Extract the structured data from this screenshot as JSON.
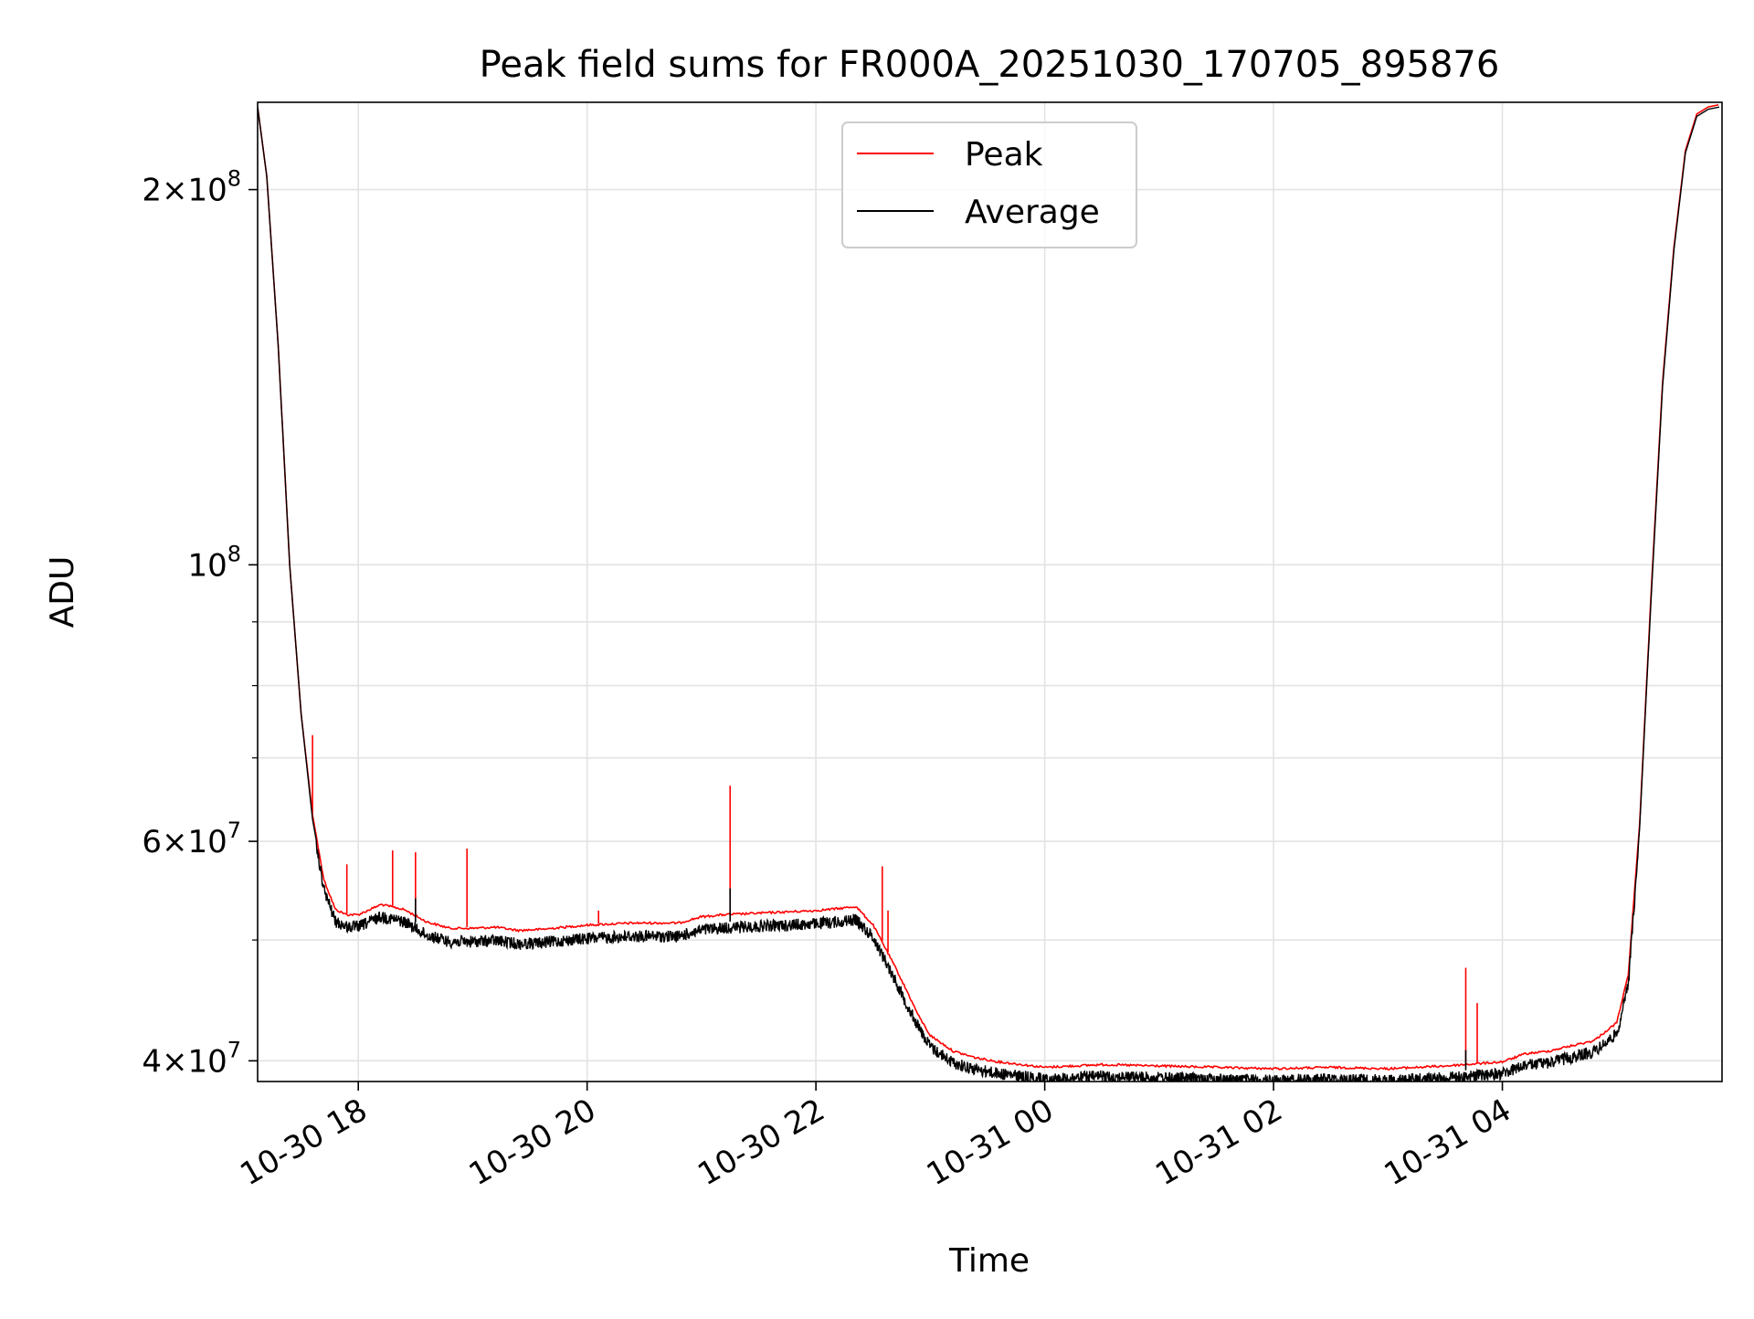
{
  "chart_data": {
    "type": "line",
    "title": "Peak field sums for FR000A_20251030_170705_895876",
    "xlabel": "Time",
    "ylabel": "ADU",
    "yscale": "log",
    "xlim_hours": [
      17.12,
      29.92
    ],
    "ylim": [
      38500000,
      235000000
    ],
    "grid": true,
    "legend_position": "upper center",
    "x_ticks": [
      {
        "hour": 18,
        "label": "10-30 18"
      },
      {
        "hour": 20,
        "label": "10-30 20"
      },
      {
        "hour": 22,
        "label": "10-30 22"
      },
      {
        "hour": 24,
        "label": "10-31 00"
      },
      {
        "hour": 26,
        "label": "10-31 02"
      },
      {
        "hour": 28,
        "label": "10-31 04"
      }
    ],
    "y_major_ticks": [
      {
        "value": 40000000,
        "mantissa": "4",
        "exponent": "7"
      },
      {
        "value": 60000000,
        "mantissa": "6",
        "exponent": "7"
      },
      {
        "value": 100000000,
        "mantissa": "",
        "exponent": "8"
      },
      {
        "value": 200000000,
        "mantissa": "2",
        "exponent": "8"
      }
    ],
    "y_minor_values": [
      50000000,
      70000000,
      80000000,
      90000000
    ],
    "series": [
      {
        "name": "Peak",
        "color": "#ff0000",
        "x_hours": [
          17.12,
          17.2,
          17.3,
          17.4,
          17.5,
          17.6,
          17.7,
          17.8,
          17.9,
          18.0,
          18.2,
          18.4,
          18.6,
          18.8,
          19.0,
          19.2,
          19.4,
          19.6,
          19.8,
          20.0,
          20.2,
          20.4,
          20.6,
          20.8,
          21.0,
          21.2,
          21.4,
          21.6,
          21.8,
          22.0,
          22.2,
          22.35,
          22.5,
          22.6,
          22.7,
          22.8,
          22.9,
          23.0,
          23.2,
          23.4,
          23.6,
          23.8,
          24.0,
          24.5,
          25.0,
          25.5,
          26.0,
          26.5,
          27.0,
          27.5,
          28.0,
          28.2,
          28.4,
          28.6,
          28.8,
          29.0,
          29.1,
          29.2,
          29.3,
          29.4,
          29.5,
          29.6,
          29.7,
          29.8,
          29.9
        ],
        "values": [
          233000000,
          205000000,
          150000000,
          100000000,
          76000000,
          63000000,
          56000000,
          53000000,
          52500000,
          52500000,
          53500000,
          53000000,
          51800000,
          51200000,
          51200000,
          51300000,
          51000000,
          51100000,
          51300000,
          51500000,
          51600000,
          51700000,
          51700000,
          51700000,
          52300000,
          52500000,
          52600000,
          52700000,
          52800000,
          52900000,
          53100000,
          53300000,
          51500000,
          49500000,
          47500000,
          45500000,
          43500000,
          42000000,
          40800000,
          40300000,
          40000000,
          39800000,
          39600000,
          39800000,
          39700000,
          39600000,
          39500000,
          39600000,
          39500000,
          39700000,
          40000000,
          40600000,
          40800000,
          41200000,
          41600000,
          43000000,
          47000000,
          62000000,
          95000000,
          140000000,
          180000000,
          215000000,
          230000000,
          233000000,
          234000000
        ],
        "spikes": [
          {
            "hour": 17.6,
            "value": 73000000
          },
          {
            "hour": 17.9,
            "value": 57500000
          },
          {
            "hour": 18.3,
            "value": 59000000
          },
          {
            "hour": 18.5,
            "value": 58800000
          },
          {
            "hour": 18.95,
            "value": 59200000
          },
          {
            "hour": 20.1,
            "value": 52800000
          },
          {
            "hour": 21.25,
            "value": 66500000
          },
          {
            "hour": 22.58,
            "value": 57300000
          },
          {
            "hour": 22.63,
            "value": 52800000
          },
          {
            "hour": 27.68,
            "value": 47500000
          },
          {
            "hour": 27.78,
            "value": 44500000
          }
        ]
      },
      {
        "name": "Average",
        "color": "#000000",
        "x_hours": [
          17.12,
          17.2,
          17.3,
          17.4,
          17.5,
          17.6,
          17.7,
          17.8,
          17.9,
          18.0,
          18.2,
          18.4,
          18.6,
          18.8,
          19.0,
          19.2,
          19.4,
          19.6,
          19.8,
          20.0,
          20.2,
          20.4,
          20.6,
          20.8,
          21.0,
          21.2,
          21.4,
          21.6,
          21.8,
          22.0,
          22.2,
          22.35,
          22.5,
          22.6,
          22.7,
          22.8,
          22.9,
          23.0,
          23.2,
          23.4,
          23.6,
          23.8,
          24.0,
          24.5,
          25.0,
          25.5,
          26.0,
          26.5,
          27.0,
          27.5,
          28.0,
          28.2,
          28.4,
          28.6,
          28.8,
          29.0,
          29.1,
          29.2,
          29.3,
          29.4,
          29.5,
          29.6,
          29.7,
          29.8,
          29.9
        ],
        "values": [
          233000000,
          205000000,
          150000000,
          100000000,
          76000000,
          62500000,
          55500000,
          52300000,
          51800000,
          51800000,
          52800000,
          52300000,
          51000000,
          50400000,
          50400000,
          50500000,
          50200000,
          50300000,
          50500000,
          50700000,
          50800000,
          50900000,
          50900000,
          50900000,
          51500000,
          51700000,
          51800000,
          51900000,
          52000000,
          52100000,
          52300000,
          52500000,
          50800000,
          48800000,
          46800000,
          44800000,
          43000000,
          41500000,
          40300000,
          39800000,
          39500000,
          39300000,
          39100000,
          39300000,
          39200000,
          39100000,
          39000000,
          39100000,
          39000000,
          39200000,
          39500000,
          40100000,
          40300000,
          40700000,
          41100000,
          42500000,
          46500000,
          61500000,
          94000000,
          139000000,
          179000000,
          214000000,
          229000000,
          232000000,
          233000000
        ],
        "spikes": [
          {
            "hour": 18.5,
            "value": 54000000
          },
          {
            "hour": 21.25,
            "value": 55000000
          },
          {
            "hour": 27.68,
            "value": 40800000
          }
        ]
      }
    ]
  }
}
